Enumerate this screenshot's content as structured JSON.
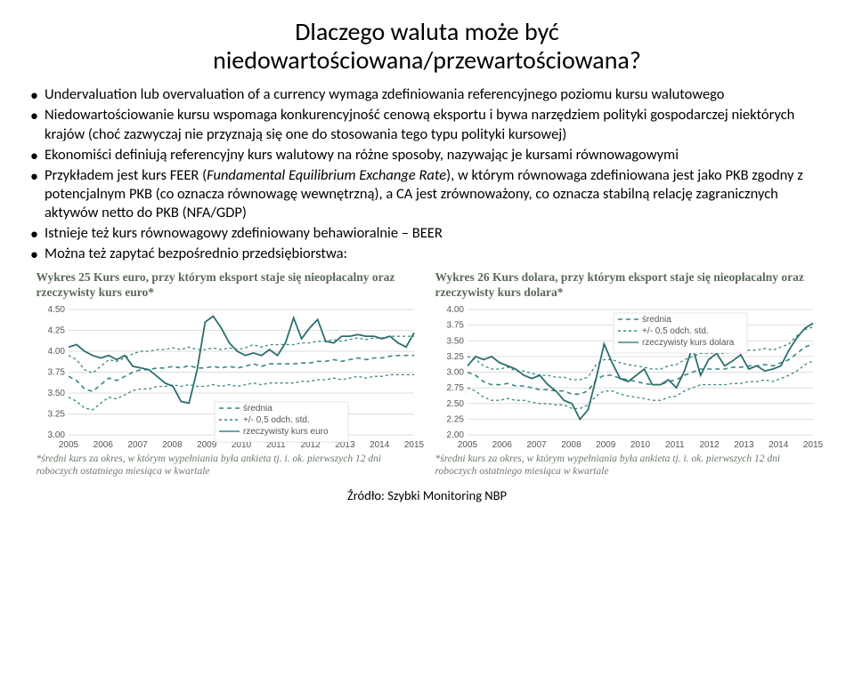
{
  "title_line1": "Dlaczego waluta może być",
  "title_line2": "niedowartościowana/przewartościowana?",
  "bullets": [
    "Undervaluation lub overvaluation of a currency wymaga zdefiniowania referencyjnego poziomu kursu walutowego",
    "Niedowartościowanie kursu wspomaga konkurencyjność cenową eksportu i bywa narzędziem polityki gospodarczej niektórych krajów (choć zazwyczaj nie przyznają się one do stosowania tego typu polityki kursowej)",
    "Ekonomiści definiują referencyjny kurs walutowy na różne sposoby, nazywając je kursami równowagowymi",
    "Przykładem jest kurs FEER (<i>Fundamental Equilibrium Exchange Rate</i>), w którym równowaga zdefiniowana jest jako PKB zgodny z potencjalnym PKB (co oznacza równowagę wewnętrzną), a CA jest zrównoważony, co oznacza stabilną relację zagranicznych aktywów netto do PKB (NFA/GDP)",
    "Istnieje też kurs równowagowy zdefiniowany behawioralnie – BEER",
    "Można też zapytać bezpośrednio przedsiębiorstwa:"
  ],
  "chart_left": {
    "title": "Wykres 25 Kurs euro, przy którym eksport staje się nieopłacalny oraz rzeczywisty kurs euro*",
    "type": "line",
    "x_labels": [
      "2005",
      "2006",
      "2007",
      "2008",
      "2009",
      "2010",
      "2011",
      "2012",
      "2013",
      "2014",
      "2015"
    ],
    "y_min": 3.0,
    "y_max": 4.5,
    "y_ticks": [
      3.0,
      3.25,
      3.5,
      3.75,
      4.0,
      4.25,
      4.5
    ],
    "background_color": "#ffffff",
    "grid_color": "#dddddd",
    "series": [
      {
        "name": "średnia",
        "color": "#3b8686",
        "dash": "5,4",
        "width": 1.6,
        "y": [
          3.7,
          3.65,
          3.55,
          3.52,
          3.6,
          3.68,
          3.65,
          3.7,
          3.75,
          3.78,
          3.78,
          3.8,
          3.8,
          3.82,
          3.8,
          3.83,
          3.8,
          3.8,
          3.82,
          3.8,
          3.82,
          3.8,
          3.82,
          3.85,
          3.82,
          3.85,
          3.85,
          3.85,
          3.85,
          3.86,
          3.86,
          3.88,
          3.88,
          3.9,
          3.88,
          3.9,
          3.92,
          3.9,
          3.92,
          3.92,
          3.94,
          3.95,
          3.95,
          3.95
        ]
      },
      {
        "name": "+/- 0,5 odch. std.",
        "color": "#3b8686",
        "dash": "3,3",
        "width": 1.3,
        "y": [
          3.45,
          3.4,
          3.32,
          3.3,
          3.38,
          3.45,
          3.43,
          3.48,
          3.53,
          3.55,
          3.55,
          3.58,
          3.58,
          3.6,
          3.58,
          3.6,
          3.58,
          3.58,
          3.6,
          3.58,
          3.6,
          3.58,
          3.6,
          3.62,
          3.6,
          3.62,
          3.62,
          3.62,
          3.62,
          3.64,
          3.64,
          3.66,
          3.66,
          3.68,
          3.66,
          3.68,
          3.7,
          3.68,
          3.7,
          3.7,
          3.72,
          3.72,
          3.72,
          3.72
        ]
      },
      {
        "name": "+/- 0,5 odch. std. (upper)",
        "color": "#3b8686",
        "dash": "3,3",
        "width": 1.3,
        "y": [
          3.95,
          3.9,
          3.78,
          3.74,
          3.82,
          3.9,
          3.88,
          3.92,
          3.97,
          4.0,
          4.0,
          4.02,
          4.02,
          4.04,
          4.02,
          4.05,
          4.02,
          4.02,
          4.04,
          4.02,
          4.04,
          4.02,
          4.04,
          4.08,
          4.05,
          4.08,
          4.08,
          4.08,
          4.08,
          4.1,
          4.1,
          4.12,
          4.12,
          4.14,
          4.12,
          4.14,
          4.16,
          4.14,
          4.16,
          4.16,
          4.18,
          4.18,
          4.18,
          4.18
        ]
      },
      {
        "name": "rzeczywisty kurs euro",
        "color": "#2d6e6e",
        "dash": "none",
        "width": 1.8,
        "y": [
          4.05,
          4.08,
          4.0,
          3.95,
          3.92,
          3.95,
          3.9,
          3.95,
          3.82,
          3.8,
          3.78,
          3.7,
          3.62,
          3.58,
          3.4,
          3.38,
          3.78,
          4.35,
          4.42,
          4.28,
          4.1,
          4.0,
          3.95,
          3.98,
          3.95,
          4.02,
          3.95,
          4.1,
          4.4,
          4.15,
          4.28,
          4.38,
          4.12,
          4.1,
          4.18,
          4.18,
          4.2,
          4.18,
          4.18,
          4.15,
          4.18,
          4.1,
          4.05,
          4.22
        ]
      }
    ],
    "legend": [
      "średnia",
      "+/- 0,5 odch. std.",
      "rzeczywisty kurs euro"
    ]
  },
  "chart_right": {
    "title": "Wykres 26 Kurs dolara, przy którym eksport staje się nieopłacalny oraz rzeczywisty kurs dolara*",
    "type": "line",
    "x_labels": [
      "2005",
      "2006",
      "2007",
      "2008",
      "2009",
      "2010",
      "2011",
      "2012",
      "2013",
      "2014",
      "2015"
    ],
    "y_min": 2.0,
    "y_max": 4.0,
    "y_ticks": [
      2.0,
      2.25,
      2.5,
      2.75,
      3.0,
      3.25,
      3.5,
      3.75,
      4.0
    ],
    "background_color": "#ffffff",
    "grid_color": "#dddddd",
    "series": [
      {
        "name": "średnia",
        "color": "#3b8686",
        "dash": "5,4",
        "width": 1.6,
        "y": [
          3.0,
          2.95,
          2.85,
          2.8,
          2.8,
          2.82,
          2.78,
          2.78,
          2.75,
          2.72,
          2.72,
          2.7,
          2.7,
          2.65,
          2.65,
          2.7,
          2.88,
          2.95,
          2.95,
          2.9,
          2.88,
          2.85,
          2.82,
          2.8,
          2.8,
          2.85,
          2.88,
          2.95,
          3.0,
          3.05,
          3.05,
          3.05,
          3.05,
          3.08,
          3.08,
          3.1,
          3.1,
          3.12,
          3.1,
          3.15,
          3.2,
          3.3,
          3.4,
          3.45
        ]
      },
      {
        "name": "+/- 0,5 odch. std.",
        "color": "#3b8686",
        "dash": "3,3",
        "width": 1.3,
        "y": [
          2.75,
          2.7,
          2.6,
          2.55,
          2.55,
          2.58,
          2.55,
          2.55,
          2.52,
          2.5,
          2.5,
          2.48,
          2.48,
          2.42,
          2.42,
          2.48,
          2.62,
          2.7,
          2.7,
          2.65,
          2.62,
          2.6,
          2.58,
          2.55,
          2.55,
          2.6,
          2.62,
          2.7,
          2.75,
          2.8,
          2.8,
          2.8,
          2.8,
          2.82,
          2.82,
          2.85,
          2.85,
          2.88,
          2.85,
          2.9,
          2.95,
          3.02,
          3.12,
          3.18
        ]
      },
      {
        "name": "+/- 0,5 odch. std. (upper)",
        "color": "#3b8686",
        "dash": "3,3",
        "width": 1.3,
        "y": [
          3.25,
          3.2,
          3.1,
          3.05,
          3.05,
          3.08,
          3.02,
          3.02,
          2.98,
          2.95,
          2.95,
          2.92,
          2.92,
          2.88,
          2.88,
          2.92,
          3.12,
          3.2,
          3.2,
          3.15,
          3.12,
          3.1,
          3.08,
          3.05,
          3.05,
          3.1,
          3.12,
          3.2,
          3.25,
          3.3,
          3.3,
          3.3,
          3.3,
          3.32,
          3.32,
          3.35,
          3.35,
          3.38,
          3.35,
          3.4,
          3.45,
          3.58,
          3.68,
          3.72
        ]
      },
      {
        "name": "rzeczywisty kurs dolara",
        "color": "#2d6e6e",
        "dash": "none",
        "width": 1.8,
        "y": [
          3.1,
          3.25,
          3.2,
          3.25,
          3.15,
          3.1,
          3.05,
          2.95,
          2.9,
          2.95,
          2.8,
          2.7,
          2.55,
          2.5,
          2.25,
          2.4,
          2.9,
          3.45,
          3.15,
          2.9,
          2.85,
          2.95,
          3.05,
          2.8,
          2.8,
          2.88,
          2.75,
          3.02,
          3.4,
          2.95,
          3.2,
          3.3,
          3.1,
          3.18,
          3.28,
          3.05,
          3.1,
          3.02,
          3.05,
          3.1,
          3.35,
          3.55,
          3.7,
          3.78
        ]
      }
    ],
    "legend": [
      "średnia",
      "+/- 0,5 odch. std.",
      "rzeczywisty kurs dolara"
    ]
  },
  "footnote": "*średni kurs za okres, w którym wypełniania była ankieta tj. i. ok. pierwszych 12 dni roboczych ostatniego miesiąca w kwartale",
  "source": "Źródło: Szybki Monitoring NBP"
}
